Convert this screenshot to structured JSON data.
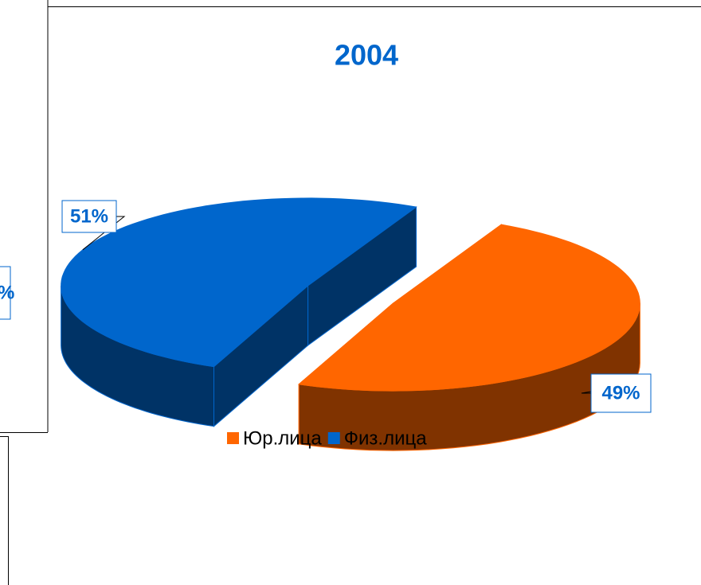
{
  "chart_data": {
    "type": "pie3d",
    "title": "2004",
    "categories": [
      "Юр.лица",
      "Физ.лица"
    ],
    "values": [
      49,
      51
    ],
    "value_labels": [
      "49%",
      "51%"
    ],
    "colors": [
      "#ff6600",
      "#0066cc"
    ],
    "side_colors": [
      "#803300",
      "#003366"
    ],
    "legend": "bottom"
  },
  "clipped_label": "%"
}
